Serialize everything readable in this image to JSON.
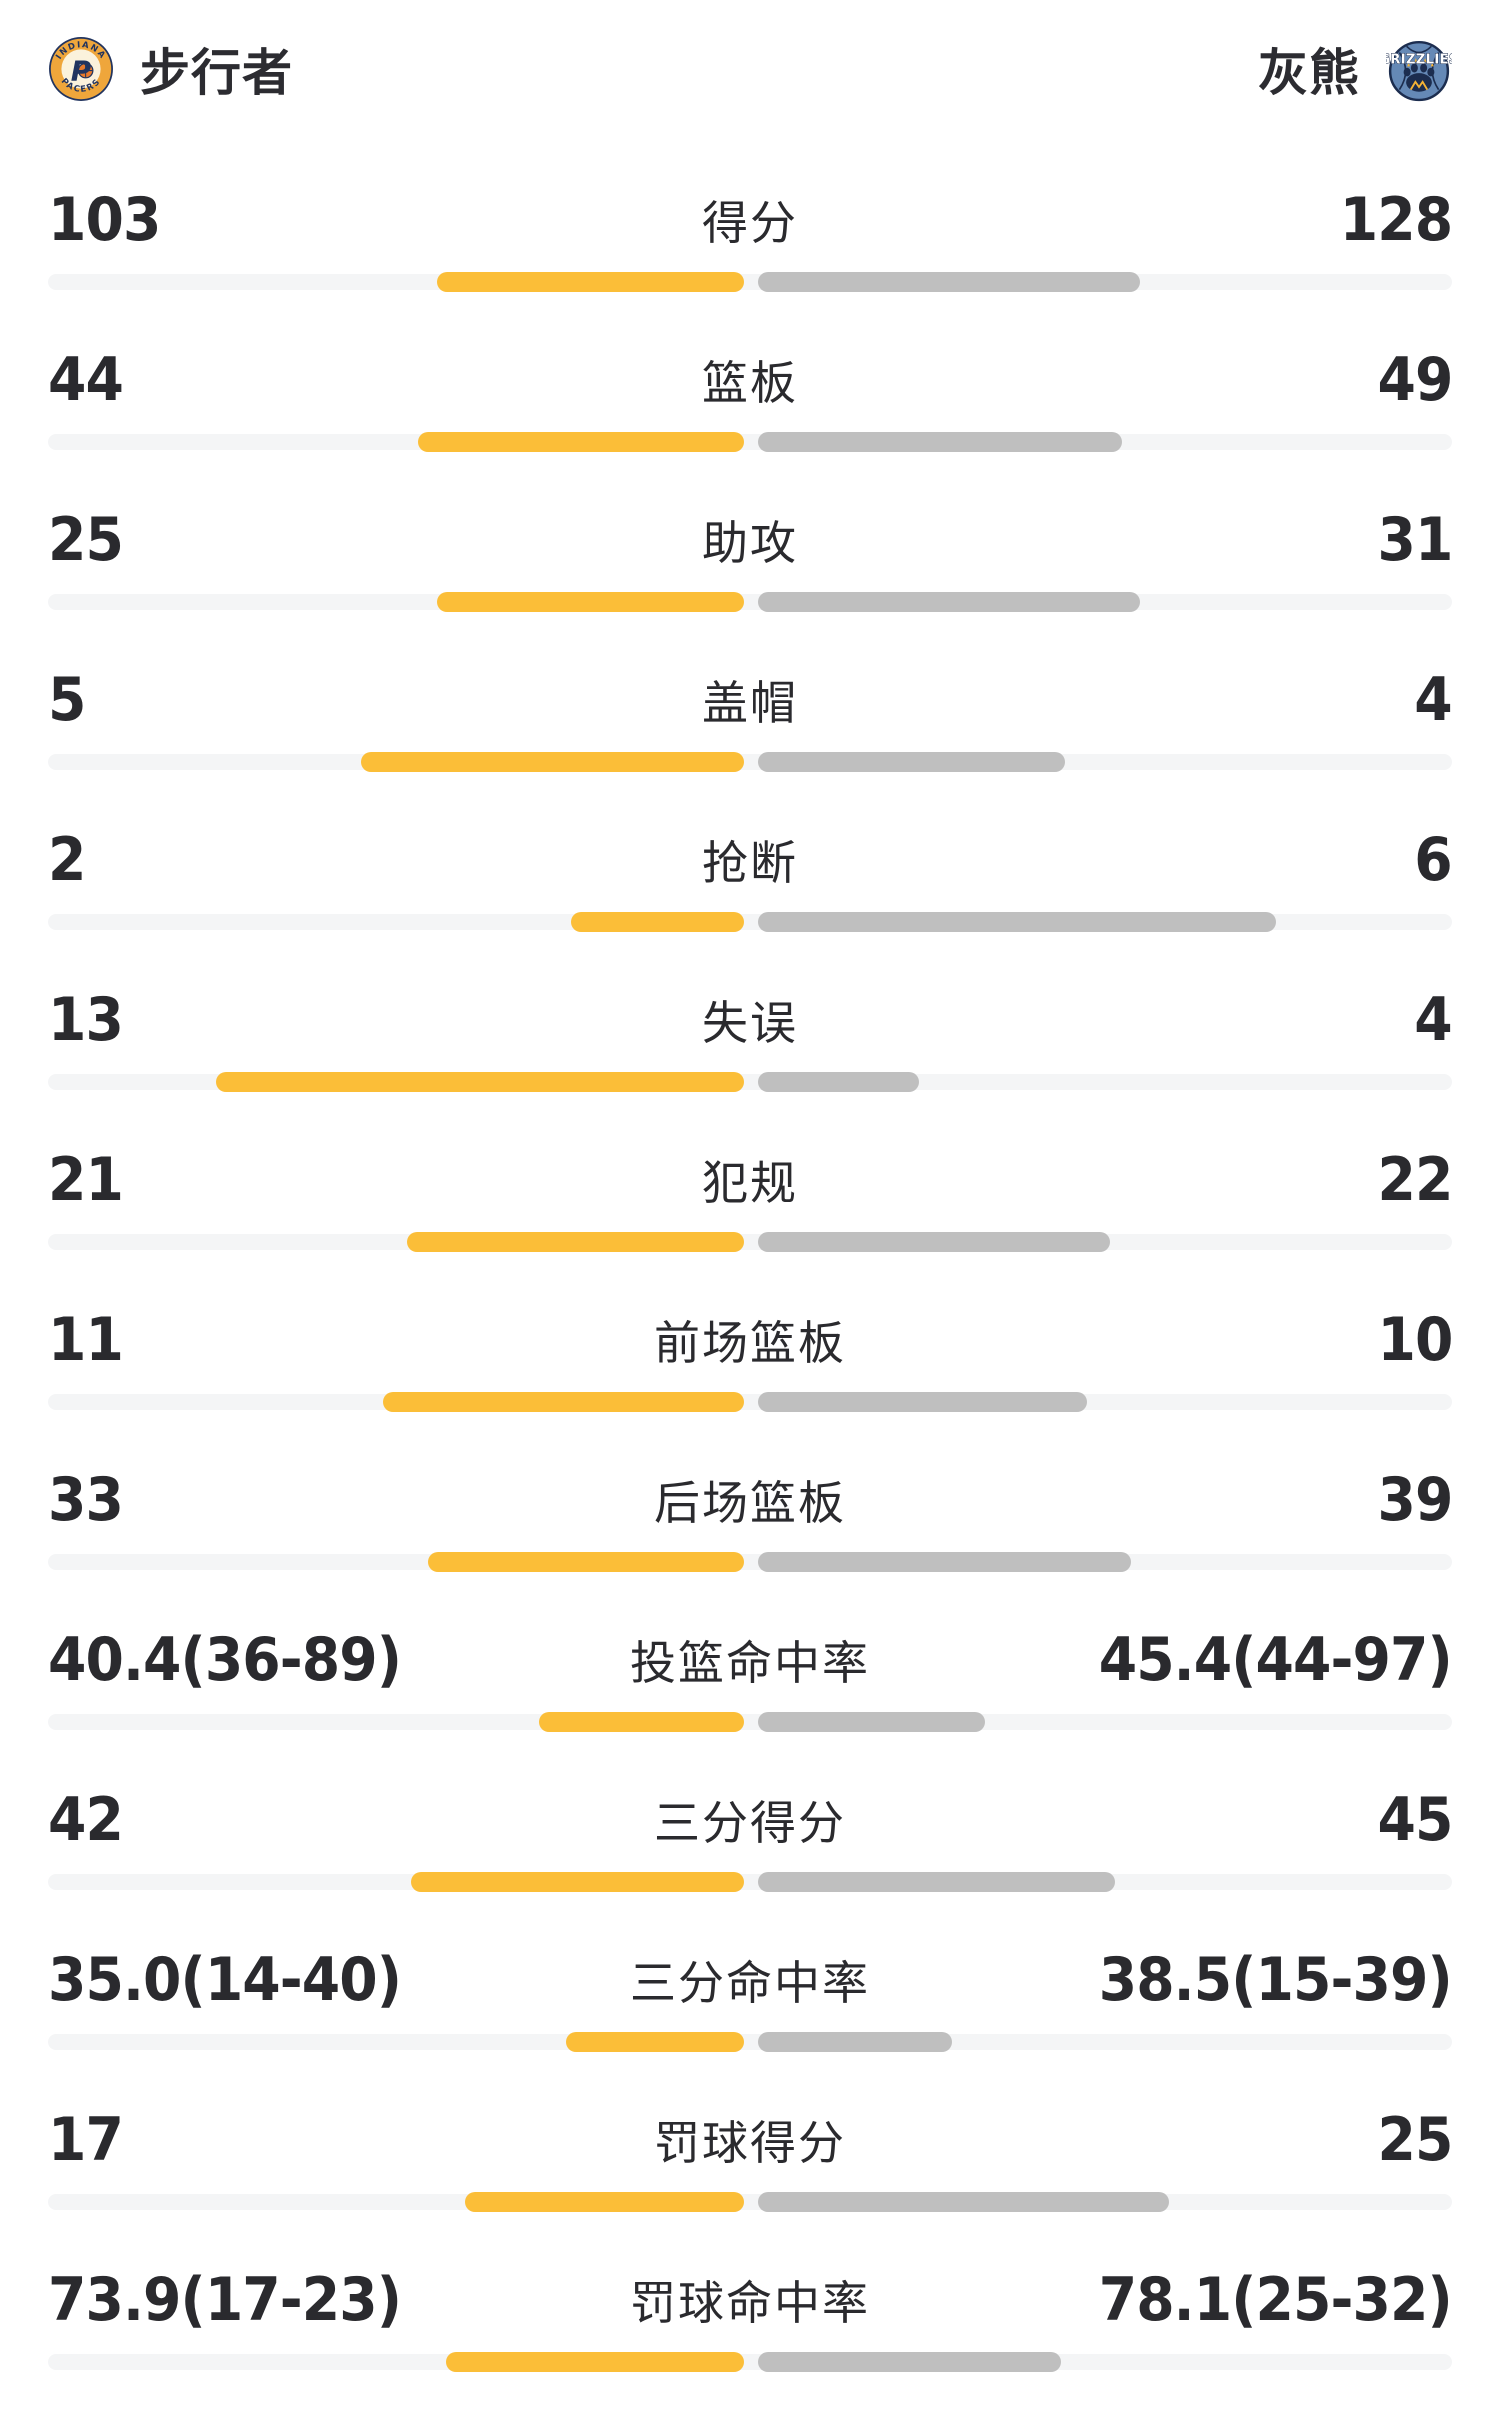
{
  "header": {
    "home": {
      "name": "步行者",
      "logo": {
        "arc_top": "INDIANA",
        "arc_bottom": "PACERS",
        "letter": "P"
      }
    },
    "away": {
      "name": "灰熊",
      "logo": {
        "banner": "GRIZZLIES"
      }
    }
  },
  "colors": {
    "home_bar": "#fbbe38",
    "away_bar": "#bfbfbf",
    "track": "#f4f5f6",
    "text": "#2a2a2e",
    "pacers_navy": "#22345f",
    "pacers_gold": "#efa63b",
    "pacers_cream": "#fbf2dc",
    "pacers_ball": "#e87a2c",
    "grizzlies_blue": "#6589b6",
    "grizzlies_navy": "#1c2d4f",
    "grizzlies_gold": "#f5b335"
  },
  "chart_data": {
    "type": "bar",
    "orientation": "horizontal-mirrored",
    "legend": [
      "步行者",
      "灰熊"
    ],
    "rows": [
      {
        "label": "得分",
        "home_display": "103",
        "away_display": "128",
        "home_value": 103,
        "away_value": 128,
        "home_bar_pct": 21.9,
        "away_bar_pct": 27.2
      },
      {
        "label": "篮板",
        "home_display": "44",
        "away_display": "49",
        "home_value": 44,
        "away_value": 49,
        "home_bar_pct": 23.2,
        "away_bar_pct": 25.9
      },
      {
        "label": "助攻",
        "home_display": "25",
        "away_display": "31",
        "home_value": 25,
        "away_value": 31,
        "home_bar_pct": 21.9,
        "away_bar_pct": 27.2
      },
      {
        "label": "盖帽",
        "home_display": "5",
        "away_display": "4",
        "home_value": 5,
        "away_value": 4,
        "home_bar_pct": 27.3,
        "away_bar_pct": 21.9
      },
      {
        "label": "抢断",
        "home_display": "2",
        "away_display": "6",
        "home_value": 2,
        "away_value": 6,
        "home_bar_pct": 12.3,
        "away_bar_pct": 36.9
      },
      {
        "label": "失误",
        "home_display": "13",
        "away_display": "4",
        "home_value": 13,
        "away_value": 4,
        "home_bar_pct": 37.6,
        "away_bar_pct": 11.5
      },
      {
        "label": "犯规",
        "home_display": "21",
        "away_display": "22",
        "home_value": 21,
        "away_value": 22,
        "home_bar_pct": 24.0,
        "away_bar_pct": 25.1
      },
      {
        "label": "前场篮板",
        "home_display": "11",
        "away_display": "10",
        "home_value": 11,
        "away_value": 10,
        "home_bar_pct": 25.7,
        "away_bar_pct": 23.4
      },
      {
        "label": "后场篮板",
        "home_display": "33",
        "away_display": "39",
        "home_value": 33,
        "away_value": 39,
        "home_bar_pct": 22.5,
        "away_bar_pct": 26.6
      },
      {
        "label": "投篮命中率",
        "home_display": "40.4(36-89)",
        "away_display": "45.4(44-97)",
        "home_value": 40.4,
        "away_value": 45.4,
        "home_made": 36,
        "home_att": 89,
        "away_made": 44,
        "away_att": 97,
        "home_bar_pct": 14.6,
        "away_bar_pct": 16.2
      },
      {
        "label": "三分得分",
        "home_display": "42",
        "away_display": "45",
        "home_value": 42,
        "away_value": 45,
        "home_bar_pct": 23.7,
        "away_bar_pct": 25.4
      },
      {
        "label": "三分命中率",
        "home_display": "35.0(14-40)",
        "away_display": "38.5(15-39)",
        "home_value": 35.0,
        "away_value": 38.5,
        "home_made": 14,
        "home_att": 40,
        "away_made": 15,
        "away_att": 39,
        "home_bar_pct": 12.7,
        "away_bar_pct": 13.8
      },
      {
        "label": "罚球得分",
        "home_display": "17",
        "away_display": "25",
        "home_value": 17,
        "away_value": 25,
        "home_bar_pct": 19.9,
        "away_bar_pct": 29.3
      },
      {
        "label": "罚球命中率",
        "home_display": "73.9(17-23)",
        "away_display": "78.1(25-32)",
        "home_value": 73.9,
        "away_value": 78.1,
        "home_made": 17,
        "home_att": 23,
        "away_made": 25,
        "away_att": 32,
        "home_bar_pct": 21.2,
        "away_bar_pct": 21.6
      }
    ]
  }
}
